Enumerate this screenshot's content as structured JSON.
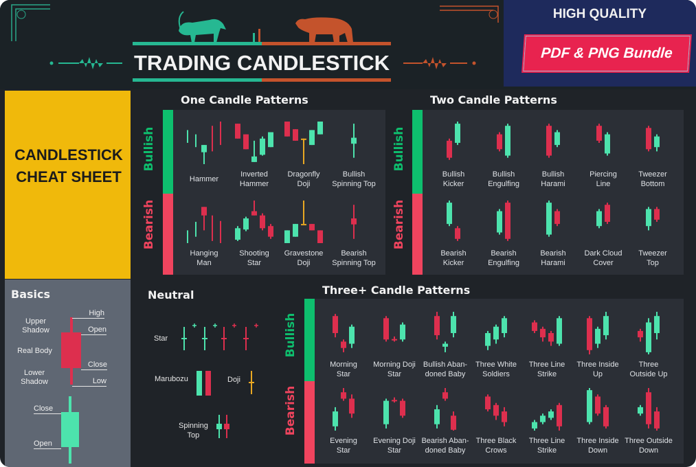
{
  "header": {
    "title": "TRADING CANDLESTICK",
    "promo_top": "HIGH QUALITY",
    "promo_button": "PDF & PNG Bundle"
  },
  "cheat_sheet": {
    "line1": "CANDLESTICK",
    "line2": "CHEAT SHEET"
  },
  "colors": {
    "bullish": "#0ebf6e",
    "bearish": "#f0445e",
    "candle_green": "#4de3ad",
    "candle_red": "#dd2f4e",
    "doji": "#e9a822",
    "accent_yellow": "#f0b90b"
  },
  "basics": {
    "title": "Basics",
    "high": "High",
    "open": "Open",
    "close": "Close",
    "low": "Low",
    "upper_shadow_1": "Upper",
    "upper_shadow_2": "Shadow",
    "real_body": "Real Body",
    "lower_shadow_1": "Lower",
    "lower_shadow_2": "Shadow",
    "green_close": "Close",
    "green_open": "Open"
  },
  "one_candle": {
    "title": "One Candle Patterns",
    "bullish_label": "Bullish",
    "bearish_label": "Bearish",
    "bullish": [
      {
        "l1": "Hammer",
        "l2": ""
      },
      {
        "l1": "Inverted",
        "l2": "Hammer"
      },
      {
        "l1": "Dragonfly",
        "l2": "Doji"
      },
      {
        "l1": "Bullish",
        "l2": "Spinning Top"
      }
    ],
    "bearish": [
      {
        "l1": "Hanging",
        "l2": "Man"
      },
      {
        "l1": "Shooting",
        "l2": "Star"
      },
      {
        "l1": "Gravestone",
        "l2": "Doji"
      },
      {
        "l1": "Bearish",
        "l2": "Spinning Top"
      }
    ]
  },
  "two_candle": {
    "title": "Two Candle Patterns",
    "bullish_label": "Bullish",
    "bearish_label": "Bearish",
    "bullish": [
      {
        "l1": "Bullish",
        "l2": "Kicker"
      },
      {
        "l1": "Bullish",
        "l2": "Engulfing"
      },
      {
        "l1": "Bullish",
        "l2": "Harami"
      },
      {
        "l1": "Piercing",
        "l2": "Line"
      },
      {
        "l1": "Tweezer",
        "l2": "Bottom"
      }
    ],
    "bearish": [
      {
        "l1": "Bearish",
        "l2": "Kicker"
      },
      {
        "l1": "Bearish",
        "l2": "Engulfing"
      },
      {
        "l1": "Bearish",
        "l2": "Harami"
      },
      {
        "l1": "Dark Cloud",
        "l2": "Cover"
      },
      {
        "l1": "Tweezer",
        "l2": "Top"
      }
    ]
  },
  "neutral": {
    "title": "Neutral",
    "star": "Star",
    "marubozu": "Marubozu",
    "doji": "Doji",
    "spinning_1": "Spinning",
    "spinning_2": "Top"
  },
  "three_candle": {
    "title": "Three+ Candle Patterns",
    "bullish_label": "Bullish",
    "bearish_label": "Bearish",
    "bullish": [
      {
        "l1": "Morning",
        "l2": "Star"
      },
      {
        "l1": "Morning Doji",
        "l2": "Star"
      },
      {
        "l1": "Bullish Aban-",
        "l2": "doned Baby"
      },
      {
        "l1": "Three White",
        "l2": "Soldiers"
      },
      {
        "l1": "Three Line",
        "l2": "Strike"
      },
      {
        "l1": "Three Inside",
        "l2": "Up"
      },
      {
        "l1": "Three",
        "l2": "Outside Up"
      }
    ],
    "bearish": [
      {
        "l1": "Evening",
        "l2": "Star"
      },
      {
        "l1": "Evening Doji",
        "l2": "Star"
      },
      {
        "l1": "Bearish Aban-",
        "l2": "doned Baby"
      },
      {
        "l1": "Three Black",
        "l2": "Crows"
      },
      {
        "l1": "Three Line",
        "l2": "Strike"
      },
      {
        "l1": "Three Inside",
        "l2": "Down"
      },
      {
        "l1": "Three Outside",
        "l2": "Down"
      }
    ]
  }
}
